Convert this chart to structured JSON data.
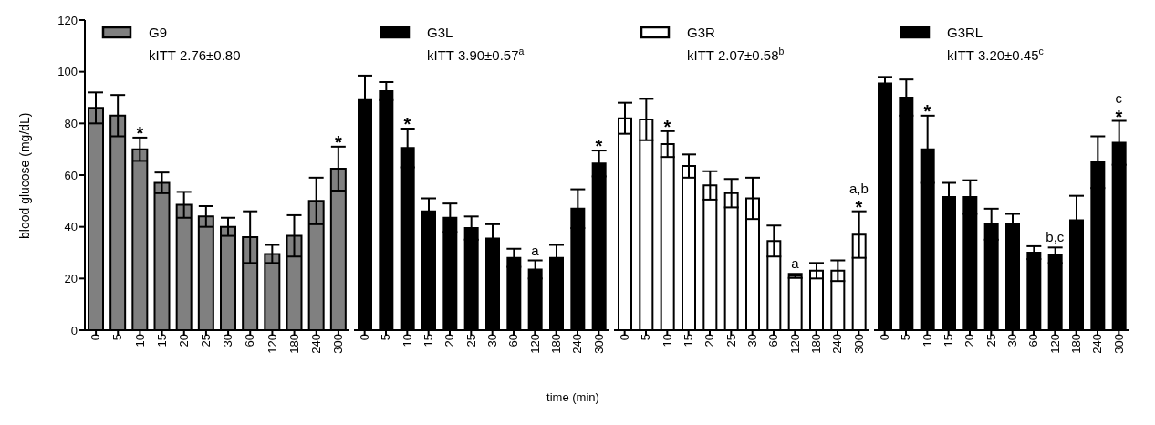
{
  "chart_data": [
    {
      "type": "bar",
      "ylabel": "blood glucose (mg/dL)",
      "categories": [
        "0",
        "5",
        "10",
        "15",
        "20",
        "25",
        "30",
        "60",
        "120",
        "180",
        "240",
        "300"
      ],
      "ylim": [
        0,
        120
      ],
      "yticks": [
        0,
        20,
        40,
        60,
        80,
        100,
        120
      ],
      "grid": false,
      "legend": "top left",
      "series": [
        {
          "name": "G9",
          "color": "#808080",
          "values": [
            86,
            83,
            70,
            57,
            48.5,
            44,
            40,
            36,
            29.5,
            36.5,
            50,
            62.5
          ],
          "errors": [
            6,
            8,
            4.5,
            4,
            5,
            4,
            3.5,
            10,
            3.5,
            8,
            9,
            8.5
          ]
        }
      ],
      "annotations": [
        "kITT 2.76±0.80",
        {
          "text": "*",
          "x": "10",
          "y": 70
        },
        {
          "text": "*",
          "x": "300",
          "y": 62.5
        }
      ]
    },
    {
      "type": "bar",
      "xlabel": "time (min)",
      "categories": [
        "0",
        "5",
        "10",
        "15",
        "20",
        "25",
        "30",
        "60",
        "120",
        "180",
        "240",
        "300"
      ],
      "ylim": [
        0,
        120
      ],
      "tick_labels": "x",
      "grid": false,
      "legend": "top left",
      "series": [
        {
          "name": "G3L",
          "color": "#000000",
          "values": [
            89,
            92.5,
            70.5,
            46,
            43.5,
            39.5,
            35.5,
            28,
            23.5,
            28,
            47,
            64.5
          ],
          "errors": [
            9.5,
            3.5,
            7.5,
            5,
            5.5,
            4.5,
            5.5,
            3.5,
            3.5,
            5,
            7.5,
            5
          ]
        }
      ],
      "annotations": [
        "kITT 3.90±0.57$^{a}$",
        {
          "text": "*",
          "x": "10",
          "y": 70.5
        },
        {
          "text": "a",
          "x": "120",
          "y": 23.5
        },
        {
          "text": "*",
          "x": "300",
          "y": 64.5
        }
      ]
    },
    {
      "type": "bar",
      "categories": [
        "0",
        "5",
        "10",
        "15",
        "20",
        "25",
        "30",
        "60",
        "120",
        "180",
        "240",
        "300"
      ],
      "ylim": [
        0,
        120
      ],
      "tick_labels": "x",
      "grid": false,
      "legend": "top left",
      "series": [
        {
          "name": "G3R",
          "color": "#ffffff",
          "values": [
            82,
            81.5,
            72,
            63.5,
            56,
            53,
            51,
            34.5,
            21,
            23,
            23,
            37
          ],
          "errors": [
            6,
            8,
            5,
            4.5,
            5.5,
            5.5,
            8,
            6,
            0.8,
            3,
            4,
            9
          ]
        }
      ],
      "annotations": [
        "kITT 2.07±0.58$^{b}$",
        {
          "text": "*",
          "x": "10",
          "y": 72
        },
        {
          "text": "a",
          "x": "120",
          "y": 21
        },
        {
          "text": "*",
          "x": "300",
          "y": 37
        },
        {
          "text": "a,b",
          "x": "300",
          "y": 37
        }
      ]
    },
    {
      "type": "bar",
      "categories": [
        "0",
        "5",
        "10",
        "15",
        "20",
        "25",
        "30",
        "60",
        "120",
        "180",
        "240",
        "300"
      ],
      "ylim": [
        0,
        120
      ],
      "tick_labels": "x",
      "grid": false,
      "legend": "top left",
      "series": [
        {
          "name": "G3RL",
          "color": "#000000",
          "values": [
            95.5,
            90,
            70,
            51.5,
            51.5,
            41,
            41,
            30,
            29,
            42.5,
            65,
            72.5
          ],
          "errors": [
            2.5,
            7,
            13,
            5.5,
            6.5,
            6,
            4,
            2.5,
            3,
            9.5,
            10,
            8.5
          ]
        }
      ],
      "annotations": [
        "kITT 3.20±0.45$^{c}$",
        {
          "text": "*",
          "x": "10",
          "y": 70
        },
        {
          "text": "b,c",
          "x": "120",
          "y": 29
        },
        {
          "text": "*",
          "x": "300",
          "y": 72.5
        },
        {
          "text": "c",
          "x": "300",
          "y": 72.5
        }
      ]
    }
  ]
}
